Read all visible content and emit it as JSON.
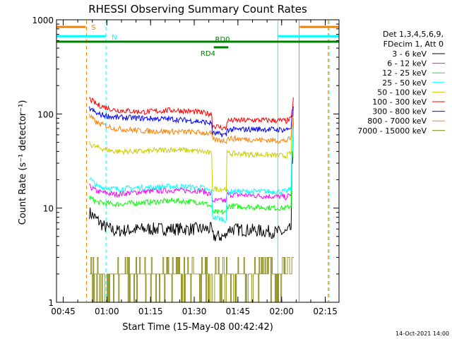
{
  "chart_data": {
    "type": "line",
    "title": "RHESSI Observing Summary Count Rates",
    "xlabel": "Start Time (15-May-08 00:42:42)",
    "ylabel": "Count Rate (s⁻¹ detector⁻¹)",
    "yscale": "log",
    "ylim": [
      1,
      1000
    ],
    "xlim_minutes": [
      0,
      97
    ],
    "x_ticks": [
      {
        "label": "00:45",
        "minute": 2.3
      },
      {
        "label": "01:00",
        "minute": 17.3
      },
      {
        "label": "01:15",
        "minute": 32.3
      },
      {
        "label": "01:30",
        "minute": 47.3
      },
      {
        "label": "01:45",
        "minute": 62.3
      },
      {
        "label": "02:00",
        "minute": 77.3
      },
      {
        "label": "02:15",
        "minute": 92.3
      }
    ],
    "y_ticks": [
      {
        "label": "1",
        "value": 1
      },
      {
        "label": "10",
        "value": 10
      },
      {
        "label": "100",
        "value": 100
      },
      {
        "label": "1000",
        "value": 1000
      }
    ],
    "legend": {
      "placement": "right",
      "header": [
        "Det 1,3,4,5,6,9,",
        "FDecim 1, Att 0"
      ]
    },
    "series": [
      {
        "name": "3 - 6 keV",
        "color": "#000000",
        "points": [
          [
            11.3,
            9
          ],
          [
            14,
            7.5
          ],
          [
            16,
            6.5
          ],
          [
            20,
            5.7
          ],
          [
            30,
            6
          ],
          [
            45,
            6
          ],
          [
            53,
            6
          ],
          [
            54,
            5
          ],
          [
            58,
            5
          ],
          [
            59,
            6
          ],
          [
            68,
            5.8
          ],
          [
            77.5,
            5.5
          ],
          [
            79,
            5.5
          ],
          [
            80.3,
            6
          ],
          [
            81,
            30
          ],
          [
            81.5,
            80
          ]
        ]
      },
      {
        "name": "6 - 12 keV",
        "color": "#ff00ff",
        "points": [
          [
            11.3,
            17
          ],
          [
            14,
            15
          ],
          [
            20,
            14
          ],
          [
            30,
            15
          ],
          [
            40,
            15.5
          ],
          [
            50,
            15.3
          ],
          [
            53,
            14
          ],
          [
            54,
            12
          ],
          [
            58,
            12
          ],
          [
            59,
            14
          ],
          [
            70,
            13.5
          ],
          [
            77.5,
            13.2
          ],
          [
            79,
            13
          ],
          [
            80.3,
            14
          ],
          [
            81,
            40
          ],
          [
            81.5,
            90
          ]
        ]
      },
      {
        "name": "12 - 25 keV",
        "color": "#00ff00",
        "points": [
          [
            11.3,
            13
          ],
          [
            14,
            11.5
          ],
          [
            20,
            11
          ],
          [
            30,
            11.5
          ],
          [
            40,
            12
          ],
          [
            50,
            11.5
          ],
          [
            53,
            10.5
          ],
          [
            54,
            9
          ],
          [
            58,
            9
          ],
          [
            59,
            10.5
          ],
          [
            70,
            10.2
          ],
          [
            77.5,
            10
          ],
          [
            79,
            10
          ],
          [
            80.3,
            10.5
          ],
          [
            81,
            35
          ],
          [
            81.5,
            85
          ]
        ]
      },
      {
        "name": "25 - 50 keV",
        "color": "#00ffff",
        "points": [
          [
            11.3,
            21
          ],
          [
            14,
            17
          ],
          [
            20,
            16
          ],
          [
            30,
            16.5
          ],
          [
            40,
            17
          ],
          [
            50,
            16.5
          ],
          [
            53,
            15
          ],
          [
            54,
            8
          ],
          [
            58,
            7.5
          ],
          [
            59,
            15
          ],
          [
            70,
            15
          ],
          [
            77.5,
            15
          ],
          [
            79,
            15
          ],
          [
            80.3,
            16
          ],
          [
            81,
            40
          ],
          [
            81.5,
            90
          ]
        ]
      },
      {
        "name": "50 - 100 keV",
        "color": "#cccc00",
        "points": [
          [
            11.3,
            48
          ],
          [
            14,
            44
          ],
          [
            20,
            40
          ],
          [
            30,
            40
          ],
          [
            40,
            42
          ],
          [
            50,
            40
          ],
          [
            53,
            38
          ],
          [
            54,
            16
          ],
          [
            58,
            16
          ],
          [
            59,
            38
          ],
          [
            70,
            37
          ],
          [
            77.5,
            36
          ],
          [
            79,
            36
          ],
          [
            80.3,
            38
          ],
          [
            81,
            70
          ],
          [
            81.5,
            110
          ]
        ]
      },
      {
        "name": "100 - 300 keV",
        "color": "#ff0000",
        "points": [
          [
            11.3,
            145
          ],
          [
            14,
            125
          ],
          [
            20,
            110
          ],
          [
            30,
            105
          ],
          [
            40,
            110
          ],
          [
            48,
            105
          ],
          [
            53,
            100
          ],
          [
            54,
            75
          ],
          [
            58,
            70
          ],
          [
            59,
            85
          ],
          [
            70,
            86
          ],
          [
            77.5,
            85
          ],
          [
            79,
            84
          ],
          [
            80.3,
            88
          ],
          [
            81,
            110
          ],
          [
            81.5,
            150
          ]
        ]
      },
      {
        "name": "300 - 800 keV",
        "color": "#0000ff",
        "points": [
          [
            11.3,
            115
          ],
          [
            14,
            100
          ],
          [
            20,
            92
          ],
          [
            30,
            90
          ],
          [
            40,
            88
          ],
          [
            48,
            84
          ],
          [
            53,
            80
          ],
          [
            54,
            62
          ],
          [
            58,
            60
          ],
          [
            59,
            68
          ],
          [
            70,
            69
          ],
          [
            77.5,
            68
          ],
          [
            79,
            68
          ],
          [
            80.3,
            72
          ],
          [
            81,
            95
          ],
          [
            81.5,
            120
          ]
        ]
      },
      {
        "name": "800 - 7000 keV",
        "color": "#ff8000",
        "points": [
          [
            11.3,
            95
          ],
          [
            14,
            80
          ],
          [
            20,
            70
          ],
          [
            30,
            66
          ],
          [
            40,
            65
          ],
          [
            48,
            64
          ],
          [
            53,
            62
          ],
          [
            54,
            53
          ],
          [
            58,
            52
          ],
          [
            59,
            55
          ],
          [
            70,
            53
          ],
          [
            77.5,
            52
          ],
          [
            79,
            52
          ],
          [
            80.3,
            55
          ],
          [
            81,
            75
          ],
          [
            81.5,
            100
          ]
        ]
      },
      {
        "name": "7000 - 15000 keV",
        "color": "#808000",
        "points": [
          [
            11.3,
            2.5
          ],
          [
            15,
            2
          ],
          [
            30,
            2
          ],
          [
            38,
            2
          ],
          [
            42,
            2.5
          ],
          [
            48,
            2
          ],
          [
            55,
            2
          ],
          [
            65,
            2
          ],
          [
            77.5,
            2
          ],
          [
            80.3,
            2
          ],
          [
            81.3,
            3
          ]
        ]
      }
    ],
    "annotations": [
      {
        "label": "S",
        "color": "#ff8000",
        "segments": [
          [
            0,
            10
          ],
          [
            83.5,
            97
          ]
        ],
        "level": 840
      },
      {
        "label": "N",
        "color": "#00ffff",
        "segments": [
          [
            0,
            17
          ],
          [
            76,
            97
          ]
        ],
        "level": 670
      },
      {
        "label": "RD0",
        "color": "#008000",
        "segments": [
          [
            0,
            97
          ]
        ],
        "level": 585
      },
      {
        "label": "RD4",
        "color": "#008000",
        "segments": [
          [
            54,
            59
          ]
        ],
        "level": 510
      }
    ],
    "vertical_markers": [
      {
        "name": "saa-start",
        "color": "#ff8000",
        "style": "dashed",
        "minute": 10.3
      },
      {
        "name": "night-start",
        "color": "#00ffff",
        "style": "dashed",
        "minute": 17.0
      },
      {
        "name": "night-end",
        "color": "#00ffff",
        "style": "solid",
        "minute": 76.0
      },
      {
        "name": "saa-end",
        "color": "#ff8000",
        "style": "solid",
        "minute": 83.3
      },
      {
        "name": "edge-left",
        "color": "#00ffff",
        "style": "solid",
        "minute": 0
      },
      {
        "name": "edge-right",
        "color": "#ff8000",
        "style": "dashed",
        "minute": 93.3
      },
      {
        "name": "edge-right-2",
        "color": "#00ffff",
        "style": "dashed",
        "minute": 93.6
      }
    ]
  },
  "footer": {
    "timestamp": "14-Oct-2021 14:00"
  }
}
